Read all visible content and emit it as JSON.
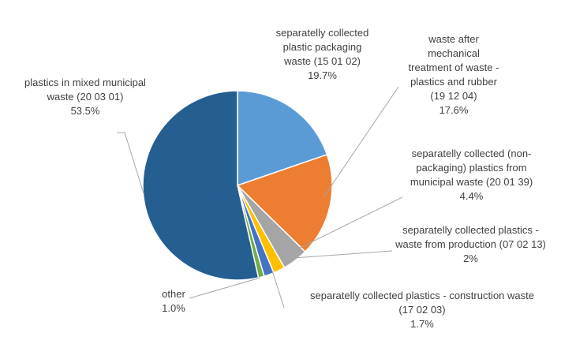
{
  "chart_data": {
    "type": "pie",
    "title": "",
    "start_angle_deg": 0,
    "direction": "clockwise",
    "slices": [
      {
        "label": "separatelly collected plastic packaging waste (15 01 02)",
        "value": 19.7,
        "value_label": "19.7%",
        "color": "#5b9bd5",
        "label_lines": [
          "separatelly collected",
          "plastic packaging",
          "waste (15 01 02)",
          "19.7%"
        ]
      },
      {
        "label": "waste after mechanical treatment of waste - plastics and rubber (19 12 04)",
        "value": 17.6,
        "value_label": "17.6%",
        "color": "#ed7d31",
        "label_lines": [
          "waste after",
          "mechanical",
          "treatment  of waste -",
          "plastics and rubber",
          "(19 12 04)",
          "17.6%"
        ]
      },
      {
        "label": "separatelly collected (non-packaging) plastics from municipal waste (20 01 39)",
        "value": 4.4,
        "value_label": "4.4%",
        "color": "#a5a5a5",
        "label_lines": [
          "separatelly collected (non-",
          "packaging) plastics from",
          "municipal waste (20 01 39)",
          "4.4%"
        ]
      },
      {
        "label": "separatelly collected plastics - waste from production (07 02 13)",
        "value": 2,
        "value_label": "2%",
        "color": "#ffc000",
        "label_lines": [
          "separatelly collected plastics -",
          "waste from  production  (07 02 13)",
          "2%"
        ]
      },
      {
        "label": "separatelly collected plastics - construction waste (17 02 03)",
        "value": 1.7,
        "value_label": "1.7%",
        "color": "#4472c4",
        "label_lines": [
          "separatelly collected plastics - construction waste",
          "(17 02 03)",
          "1.7%"
        ]
      },
      {
        "label": "other",
        "value": 1.0,
        "value_label": "1.0%",
        "color": "#70ad47",
        "label_lines": [
          "other",
          "1.0%"
        ]
      },
      {
        "label": "plastics in mixed municipal waste (20 03 01)",
        "value": 53.5,
        "value_label": "53.5%",
        "color": "#255e91",
        "label_lines": [
          "plastics in mixed municipal",
          "waste (20 03 01)",
          "53.5%"
        ]
      }
    ]
  }
}
